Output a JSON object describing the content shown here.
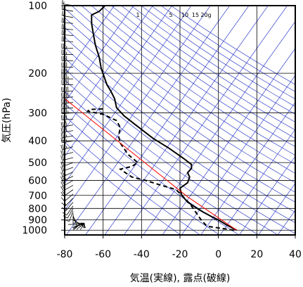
{
  "chart_data": {
    "type": "line",
    "title": "",
    "xlabel": "気温(実線), 露点(破線)",
    "ylabel": "気圧(hPa)",
    "xlim": [
      -80,
      40
    ],
    "ylim_hpa": [
      1050,
      100
    ],
    "y_scale": "log",
    "x_ticks": [
      -80,
      -60,
      -40,
      -20,
      0,
      20,
      40
    ],
    "y_ticks": [
      100,
      200,
      300,
      400,
      500,
      600,
      700,
      800,
      900,
      1000
    ],
    "y_tick_labels": [
      "100",
      "200",
      "300",
      "400",
      "500",
      "600",
      "700",
      "800",
      "900",
      "1000"
    ],
    "mixing_ratio_labels": [
      "1",
      "5",
      "10",
      "15",
      "20g"
    ],
    "colors": {
      "temperature": "#000000",
      "dewpoint": "#000000",
      "parcel": "#ff0000",
      "reference_lines": "#3340cc",
      "grid": "#000000"
    },
    "series": [
      {
        "key": "temperature",
        "style": "solid",
        "points": [
          [
            9.5,
            1000
          ],
          [
            4.5,
            950
          ],
          [
            0,
            900
          ],
          [
            -3,
            875
          ],
          [
            -8,
            830
          ],
          [
            -12,
            790
          ],
          [
            -16,
            750
          ],
          [
            -19,
            700
          ],
          [
            -20,
            650
          ],
          [
            -16,
            615
          ],
          [
            -15,
            580
          ],
          [
            -16,
            555
          ],
          [
            -14,
            530
          ],
          [
            -14,
            510
          ],
          [
            -18,
            480
          ],
          [
            -26,
            430
          ],
          [
            -34,
            390
          ],
          [
            -43,
            340
          ],
          [
            -49,
            310
          ],
          [
            -53,
            285
          ],
          [
            -54,
            260
          ],
          [
            -56,
            240
          ],
          [
            -58,
            225
          ],
          [
            -61,
            190
          ],
          [
            -62,
            170
          ],
          [
            -64,
            150
          ],
          [
            -65,
            135
          ],
          [
            -66,
            120
          ],
          [
            -66,
            110
          ],
          [
            -62,
            106
          ],
          [
            -59,
            100
          ]
        ]
      },
      {
        "key": "dewpoint",
        "style": "dashed",
        "points": [
          [
            8,
            1000
          ],
          [
            -6,
            960
          ],
          [
            -9,
            900
          ],
          [
            -11,
            850
          ],
          [
            -15,
            760
          ],
          [
            -19,
            700
          ],
          [
            -22,
            660
          ],
          [
            -30,
            630
          ],
          [
            -38,
            600
          ],
          [
            -45,
            580
          ],
          [
            -49,
            550
          ],
          [
            -51,
            535
          ],
          [
            -45,
            520
          ],
          [
            -42,
            500
          ],
          [
            -47,
            460
          ],
          [
            -51,
            410
          ],
          [
            -52,
            380
          ],
          [
            -51,
            350
          ],
          [
            -53,
            325
          ],
          [
            -60,
            305
          ],
          [
            -68,
            295
          ],
          [
            -67,
            290
          ],
          [
            -60,
            288
          ]
        ]
      },
      {
        "key": "parcel",
        "style": "solid",
        "points": [
          [
            9.5,
            1000
          ],
          [
            -16,
            710
          ],
          [
            -85,
            240
          ]
        ]
      }
    ],
    "wind_barbs": [
      {
        "p": 1000,
        "dir": 50,
        "spd": 15
      },
      {
        "p": 985,
        "dir": 60,
        "spd": 20
      },
      {
        "p": 970,
        "dir": 70,
        "spd": 15
      },
      {
        "p": 950,
        "dir": 80,
        "spd": 10
      },
      {
        "p": 930,
        "dir": 90,
        "spd": 10
      },
      {
        "p": 900,
        "dir": 120,
        "spd": 15
      },
      {
        "p": 880,
        "dir": 140,
        "spd": 10
      },
      {
        "p": 860,
        "dir": 160,
        "spd": 10
      },
      {
        "p": 840,
        "dir": 180,
        "spd": 10
      },
      {
        "p": 820,
        "dir": 200,
        "spd": 10
      },
      {
        "p": 800,
        "dir": 210,
        "spd": 10
      },
      {
        "p": 780,
        "dir": 215,
        "spd": 10
      },
      {
        "p": 750,
        "dir": 220,
        "spd": 15
      },
      {
        "p": 720,
        "dir": 225,
        "spd": 15
      },
      {
        "p": 690,
        "dir": 230,
        "spd": 15
      },
      {
        "p": 660,
        "dir": 235,
        "spd": 20
      },
      {
        "p": 630,
        "dir": 240,
        "spd": 20
      },
      {
        "p": 600,
        "dir": 240,
        "spd": 20
      },
      {
        "p": 575,
        "dir": 245,
        "spd": 25
      },
      {
        "p": 550,
        "dir": 245,
        "spd": 25
      },
      {
        "p": 525,
        "dir": 250,
        "spd": 25
      },
      {
        "p": 500,
        "dir": 250,
        "spd": 30
      },
      {
        "p": 475,
        "dir": 255,
        "spd": 30
      },
      {
        "p": 450,
        "dir": 255,
        "spd": 30
      },
      {
        "p": 425,
        "dir": 255,
        "spd": 35
      },
      {
        "p": 400,
        "dir": 260,
        "spd": 35
      },
      {
        "p": 380,
        "dir": 260,
        "spd": 35
      },
      {
        "p": 360,
        "dir": 260,
        "spd": 40
      },
      {
        "p": 340,
        "dir": 260,
        "spd": 40
      },
      {
        "p": 320,
        "dir": 265,
        "spd": 40
      },
      {
        "p": 300,
        "dir": 265,
        "spd": 45
      },
      {
        "p": 285,
        "dir": 265,
        "spd": 45
      },
      {
        "p": 270,
        "dir": 265,
        "spd": 45
      },
      {
        "p": 255,
        "dir": 265,
        "spd": 50
      },
      {
        "p": 240,
        "dir": 265,
        "spd": 50
      },
      {
        "p": 225,
        "dir": 270,
        "spd": 50
      },
      {
        "p": 212,
        "dir": 270,
        "spd": 45
      },
      {
        "p": 200,
        "dir": 270,
        "spd": 45
      },
      {
        "p": 188,
        "dir": 270,
        "spd": 40
      },
      {
        "p": 176,
        "dir": 270,
        "spd": 40
      },
      {
        "p": 165,
        "dir": 270,
        "spd": 35
      },
      {
        "p": 155,
        "dir": 270,
        "spd": 35
      },
      {
        "p": 145,
        "dir": 275,
        "spd": 30
      },
      {
        "p": 136,
        "dir": 275,
        "spd": 30
      },
      {
        "p": 128,
        "dir": 275,
        "spd": 25
      },
      {
        "p": 120,
        "dir": 275,
        "spd": 25
      },
      {
        "p": 113,
        "dir": 280,
        "spd": 20
      },
      {
        "p": 106,
        "dir": 280,
        "spd": 20
      },
      {
        "p": 100,
        "dir": 280,
        "spd": 15
      }
    ]
  }
}
